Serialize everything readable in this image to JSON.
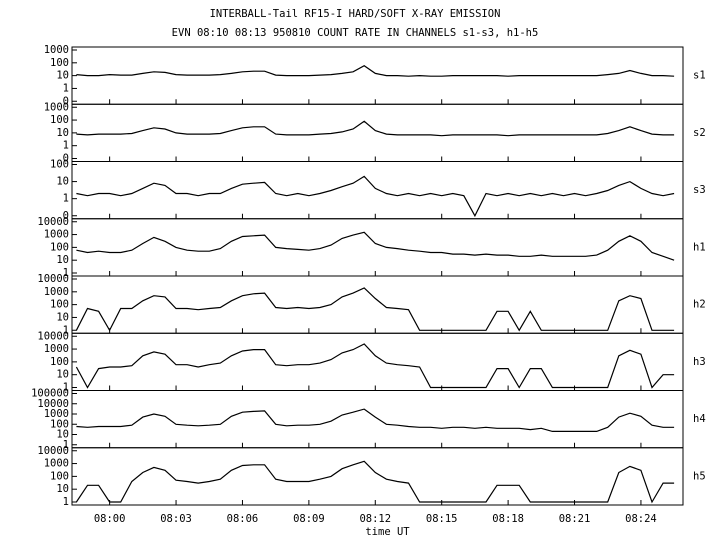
{
  "chart_data": [
    {
      "type": "line",
      "title": "INTERBALL-Tail RF15-I HARD/SOFT X-RAY EMISSION",
      "subtitle": "EVN 08:10 08:13 950810  COUNT RATE IN CHANNELS s1-s3, h1-h5",
      "label": "s1",
      "log_scale": true,
      "color": "#000000",
      "ylim": [
        0.1,
        1000
      ],
      "yticks": [
        {
          "value": 0.1,
          "label": "0"
        },
        1,
        10,
        100,
        1000
      ],
      "values": [
        12,
        10,
        10,
        12,
        11,
        11,
        15,
        20,
        18,
        12,
        11,
        11,
        11,
        12,
        15,
        20,
        22,
        22,
        11,
        10,
        10,
        10,
        11,
        12,
        15,
        20,
        60,
        15,
        10,
        10,
        9,
        10,
        9,
        9,
        10,
        10,
        10,
        10,
        10,
        9,
        10,
        10,
        10,
        10,
        10,
        10,
        10,
        10,
        12,
        15,
        25,
        15,
        10,
        10,
        9
      ]
    },
    {
      "type": "line",
      "label": "s2",
      "log_scale": true,
      "color": "#000000",
      "ylim": [
        0.1,
        1000
      ],
      "yticks": [
        {
          "value": 0.1,
          "label": "0"
        },
        1,
        10,
        100,
        1000
      ],
      "values": [
        8,
        7,
        8,
        8,
        8,
        9,
        15,
        25,
        20,
        10,
        8,
        8,
        8,
        9,
        15,
        25,
        30,
        30,
        8,
        7,
        7,
        7,
        8,
        9,
        12,
        20,
        80,
        15,
        8,
        7,
        7,
        7,
        7,
        6,
        7,
        7,
        7,
        7,
        7,
        6,
        7,
        7,
        7,
        7,
        7,
        7,
        7,
        7,
        9,
        15,
        30,
        15,
        8,
        7,
        7
      ]
    },
    {
      "type": "line",
      "label": "s3",
      "log_scale": true,
      "color": "#000000",
      "ylim": [
        0.1,
        100
      ],
      "yticks": [
        {
          "value": 0.1,
          "label": "0"
        },
        1,
        10,
        100
      ],
      "values": [
        2,
        1.5,
        2,
        2,
        1.5,
        2,
        4,
        8,
        6,
        2,
        2,
        1.5,
        2,
        2,
        4,
        7,
        8,
        9,
        2,
        1.5,
        2,
        1.5,
        2,
        3,
        5,
        8,
        20,
        4,
        2,
        1.5,
        2,
        1.5,
        2,
        1.5,
        2,
        1.5,
        0.1,
        2,
        1.5,
        2,
        1.5,
        2,
        1.5,
        2,
        1.5,
        2,
        1.5,
        2,
        3,
        6,
        10,
        4,
        2,
        1.5,
        2
      ]
    },
    {
      "type": "line",
      "label": "h1",
      "log_scale": true,
      "color": "#000000",
      "ylim": [
        1,
        10000
      ],
      "yticks": [
        1,
        10,
        100,
        1000,
        10000
      ],
      "values": [
        60,
        40,
        50,
        40,
        40,
        60,
        200,
        600,
        300,
        100,
        60,
        50,
        50,
        80,
        300,
        700,
        800,
        900,
        100,
        80,
        70,
        60,
        80,
        150,
        500,
        900,
        1500,
        200,
        100,
        80,
        60,
        50,
        40,
        40,
        30,
        30,
        25,
        30,
        25,
        25,
        20,
        20,
        25,
        20,
        20,
        20,
        20,
        25,
        60,
        300,
        800,
        300,
        40,
        20,
        10
      ]
    },
    {
      "type": "line",
      "label": "h2",
      "log_scale": true,
      "color": "#000000",
      "ylim": [
        1,
        10000
      ],
      "yticks": [
        1,
        10,
        100,
        1000,
        10000
      ],
      "values": [
        1,
        50,
        30,
        1,
        50,
        50,
        200,
        500,
        400,
        50,
        50,
        40,
        50,
        60,
        200,
        500,
        700,
        800,
        60,
        50,
        60,
        50,
        60,
        100,
        400,
        800,
        2000,
        300,
        60,
        50,
        40,
        1,
        1,
        1,
        1,
        1,
        1,
        1,
        30,
        30,
        1,
        30,
        1,
        1,
        1,
        1,
        1,
        1,
        1,
        200,
        500,
        300,
        1,
        1,
        1
      ]
    },
    {
      "type": "line",
      "label": "h3",
      "log_scale": true,
      "color": "#000000",
      "ylim": [
        1,
        10000
      ],
      "yticks": [
        1,
        10,
        100,
        1000,
        10000
      ],
      "values": [
        40,
        1,
        30,
        40,
        40,
        50,
        300,
        600,
        400,
        60,
        60,
        40,
        60,
        80,
        300,
        700,
        900,
        900,
        60,
        50,
        60,
        60,
        80,
        150,
        500,
        900,
        2500,
        300,
        80,
        60,
        50,
        40,
        1,
        1,
        1,
        1,
        1,
        1,
        30,
        30,
        1,
        30,
        30,
        1,
        1,
        1,
        1,
        1,
        1,
        300,
        800,
        400,
        1,
        10,
        10
      ]
    },
    {
      "type": "line",
      "label": "h4",
      "log_scale": true,
      "color": "#000000",
      "ylim": [
        1,
        100000
      ],
      "yticks": [
        1,
        10,
        100,
        1000,
        10000,
        100000
      ],
      "values": [
        60,
        50,
        60,
        60,
        60,
        80,
        500,
        1000,
        600,
        100,
        80,
        70,
        80,
        100,
        600,
        1500,
        1800,
        2000,
        100,
        70,
        80,
        80,
        100,
        200,
        800,
        1500,
        3000,
        500,
        100,
        80,
        60,
        50,
        50,
        40,
        50,
        50,
        40,
        50,
        40,
        40,
        40,
        30,
        40,
        20,
        20,
        20,
        20,
        20,
        50,
        500,
        1200,
        600,
        80,
        50,
        50
      ]
    },
    {
      "type": "line",
      "label": "h5",
      "log_scale": true,
      "color": "#000000",
      "ylim": [
        1,
        10000
      ],
      "yticks": [
        1,
        10,
        100,
        1000,
        10000
      ],
      "values": [
        1,
        20,
        20,
        1,
        1,
        40,
        200,
        500,
        300,
        50,
        40,
        30,
        40,
        60,
        300,
        700,
        800,
        800,
        60,
        40,
        40,
        40,
        60,
        100,
        400,
        800,
        1500,
        200,
        60,
        40,
        30,
        1,
        1,
        1,
        1,
        1,
        1,
        1,
        20,
        20,
        20,
        1,
        1,
        1,
        1,
        1,
        1,
        1,
        1,
        200,
        600,
        300,
        1,
        30,
        30
      ],
      "xlabel": "time UT",
      "x": [
        478.5,
        479,
        479.5,
        480,
        480.5,
        481,
        481.5,
        482,
        482.5,
        483,
        483.5,
        484,
        484.5,
        485,
        485.5,
        486,
        486.5,
        487,
        487.5,
        488,
        488.5,
        489,
        489.5,
        490,
        490.5,
        491,
        491.5,
        492,
        492.5,
        493,
        493.5,
        494,
        494.5,
        495,
        495.5,
        496,
        496.5,
        497,
        497.5,
        498,
        498.5,
        499,
        499.5,
        500,
        500.5,
        501,
        501.5,
        502,
        502.5,
        503,
        503.5,
        504,
        504.5,
        505,
        505.5
      ],
      "xlim": [
        478.3,
        505.9
      ],
      "xticks": [
        {
          "value": 480,
          "label": "08:00"
        },
        {
          "value": 483,
          "label": "08:03"
        },
        {
          "value": 486,
          "label": "08:06"
        },
        {
          "value": 489,
          "label": "08:09"
        },
        {
          "value": 492,
          "label": "08:12"
        },
        {
          "value": 495,
          "label": "08:15"
        },
        {
          "value": 498,
          "label": "08:18"
        },
        {
          "value": 501,
          "label": "08:21"
        },
        {
          "value": 504,
          "label": "08:24"
        }
      ]
    }
  ]
}
